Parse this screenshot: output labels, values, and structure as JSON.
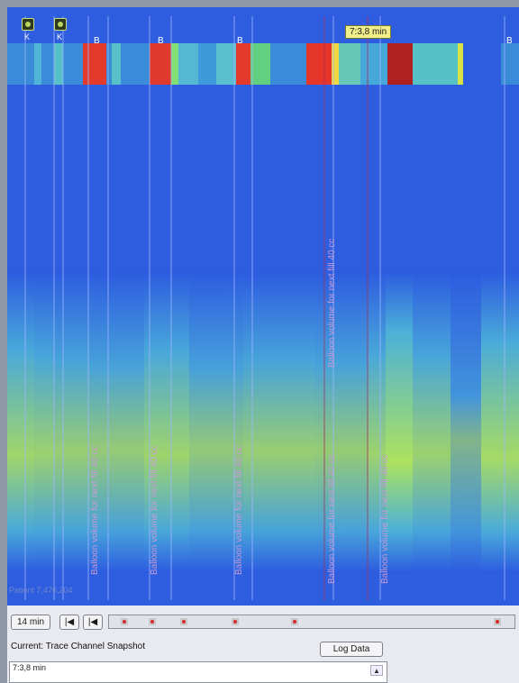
{
  "heatmap": {
    "top_band": [
      {
        "x": 0,
        "w": 30,
        "c": "#3a8bd8"
      },
      {
        "x": 30,
        "w": 8,
        "c": "#4fb4d8"
      },
      {
        "x": 38,
        "w": 14,
        "c": "#3a8bd8"
      },
      {
        "x": 52,
        "w": 10,
        "c": "#58c0c8"
      },
      {
        "x": 62,
        "w": 22,
        "c": "#3a8bd8"
      },
      {
        "x": 84,
        "w": 26,
        "c": "#e33a2c"
      },
      {
        "x": 110,
        "w": 6,
        "c": "#3a8bd8"
      },
      {
        "x": 116,
        "w": 10,
        "c": "#58c0c8"
      },
      {
        "x": 126,
        "w": 32,
        "c": "#3a8bd8"
      },
      {
        "x": 158,
        "w": 24,
        "c": "#e03a2e"
      },
      {
        "x": 182,
        "w": 8,
        "c": "#82e074"
      },
      {
        "x": 190,
        "w": 22,
        "c": "#55b8d2"
      },
      {
        "x": 212,
        "w": 20,
        "c": "#3e9ad8"
      },
      {
        "x": 232,
        "w": 22,
        "c": "#5ac0d0"
      },
      {
        "x": 254,
        "w": 16,
        "c": "#e33a2c"
      },
      {
        "x": 270,
        "w": 22,
        "c": "#62d080"
      },
      {
        "x": 292,
        "w": 40,
        "c": "#3a8bd8"
      },
      {
        "x": 332,
        "w": 28,
        "c": "#e6362a"
      },
      {
        "x": 360,
        "w": 8,
        "c": "#f0d840"
      },
      {
        "x": 368,
        "w": 24,
        "c": "#68c8b8"
      },
      {
        "x": 392,
        "w": 30,
        "c": "#45a8d8"
      },
      {
        "x": 422,
        "w": 28,
        "c": "#b02020"
      },
      {
        "x": 450,
        "w": 50,
        "c": "#56c2c8"
      },
      {
        "x": 500,
        "w": 6,
        "c": "#d6e246"
      },
      {
        "x": 506,
        "w": 12,
        "c": "#2f5de0"
      },
      {
        "x": 518,
        "w": 30,
        "c": "#2f5de0"
      },
      {
        "x": 548,
        "w": 20,
        "c": "#3a8bd8"
      }
    ],
    "bottom_columns": [
      {
        "x": 0,
        "w": 30,
        "level": 0.62
      },
      {
        "x": 30,
        "w": 22,
        "level": 0.55
      },
      {
        "x": 52,
        "w": 40,
        "level": 0.5
      },
      {
        "x": 92,
        "w": 60,
        "level": 0.45
      },
      {
        "x": 152,
        "w": 50,
        "level": 0.6
      },
      {
        "x": 202,
        "w": 60,
        "level": 0.42
      },
      {
        "x": 262,
        "w": 80,
        "level": 0.5
      },
      {
        "x": 342,
        "w": 58,
        "level": 0.46
      },
      {
        "x": 400,
        "w": 20,
        "level": 0.58
      },
      {
        "x": 420,
        "w": 30,
        "level": 0.82
      },
      {
        "x": 450,
        "w": 42,
        "level": 0.55
      },
      {
        "x": 492,
        "w": 34,
        "level": 0.12
      },
      {
        "x": 526,
        "w": 42,
        "level": 0.7
      }
    ],
    "markers": [
      "K",
      "K"
    ],
    "b_labels": [
      "B",
      "B",
      "B",
      "B"
    ],
    "time_callout": "7:3,8 min",
    "annotations": [
      "Balloon volume for next fill 40 cc",
      "Balloon volume for next fill 40 cc",
      "Balloon volume for next fill 40 cc",
      "Balloon volume for next fill 40 cc",
      "Balloon volume for next fill 40 cc",
      "Balloon volume for next fill 40 cc"
    ],
    "patient_label": "Patient 7,476,204"
  },
  "controls": {
    "zoom_button": "14 min",
    "first_button": "|◀",
    "prev_button": "|◀",
    "current_label": "Current:  Trace Channel Snapshot",
    "log_button": "Log Data",
    "snapshot_line": "7:3,8 min",
    "timeline_ticks": [
      0.03,
      0.1,
      0.18,
      0.31,
      0.46,
      0.97
    ]
  },
  "colors": {
    "background": "#2f5de0",
    "low": "#2b5ae0",
    "mid": "#4fb8d8",
    "high": "#b8ee52",
    "peak": "#e33a2c"
  }
}
